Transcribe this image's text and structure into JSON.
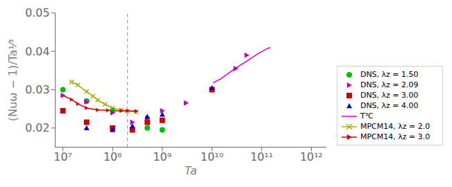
{
  "chart_data": {
    "type": "scatter",
    "log": "x",
    "grid": false,
    "legend": "lower right",
    "x_label": "Ta",
    "y_label": "(Nuω − 1)/Ta¹⁄³",
    "xlim": [
      7000000.0,
      2000000000000.0
    ],
    "xticks": [
      {
        "value": 10000000.0,
        "label": "10⁷"
      },
      {
        "value": 100000000.0,
        "label": "10⁸"
      },
      {
        "value": 1000000000.0,
        "label": "10⁹"
      },
      {
        "value": 10000000000.0,
        "label": "10¹⁰"
      },
      {
        "value": 100000000000.0,
        "label": "10¹¹"
      },
      {
        "value": 1000000000000.0,
        "label": "10¹²"
      }
    ],
    "ylim": [
      0.015,
      0.05
    ],
    "yticks": [
      0.02,
      0.03,
      0.04,
      0.05
    ],
    "vline": {
      "x": 200000000.0,
      "color": "#888888",
      "line_style": "dashed"
    },
    "series": [
      {
        "name": "DNS, λz = 1.50",
        "color": "#00bb00",
        "marker": "circle",
        "line_style": "none",
        "x": [
          10000000.0,
          30000000.0,
          100000000.0,
          500000000.0,
          1000000000.0
        ],
        "values": [
          0.03,
          0.027,
          0.0245,
          0.02,
          0.0195
        ]
      },
      {
        "name": "DNS, λz = 2.09",
        "color": "#bb00bb",
        "marker": "triangle-right",
        "line_style": "none",
        "x": [
          10000000.0,
          30000000.0,
          100000000.0,
          250000000.0,
          500000000.0,
          1000000000.0,
          3000000000.0,
          10000000000.0,
          30000000000.0,
          50000000000.0
        ],
        "values": [
          0.0285,
          0.0268,
          0.024,
          0.0215,
          0.0225,
          0.0245,
          0.0265,
          0.03,
          0.0355,
          0.039
        ]
      },
      {
        "name": "DNS, λz = 3.00",
        "color": "#cc0000",
        "marker": "square",
        "line_style": "none",
        "x": [
          10000000.0,
          30000000.0,
          100000000.0,
          250000000.0,
          500000000.0,
          1000000000.0,
          10000000000.0
        ],
        "values": [
          0.0245,
          0.0215,
          0.02,
          0.0195,
          0.0215,
          0.022,
          0.03
        ]
      },
      {
        "name": "DNS, λz = 4.00",
        "color": "#0000cc",
        "marker": "triangle-up",
        "line_style": "none",
        "x": [
          30000000.0,
          100000000.0,
          250000000.0,
          500000000.0,
          1000000000.0,
          10000000000.0
        ],
        "values": [
          0.02,
          0.0195,
          0.0205,
          0.023,
          0.0235,
          0.0305
        ]
      },
      {
        "name": "T³C",
        "color": "#cc00cc",
        "marker": "none",
        "line_style": "solid",
        "x": [
          10500000000.0,
          15000000000.0,
          20000000000.0,
          30000000000.0,
          50000000000.0,
          80000000000.0,
          120000000000.0,
          150000000000.0
        ],
        "values": [
          0.0318,
          0.0328,
          0.034,
          0.0356,
          0.0374,
          0.0392,
          0.0405,
          0.041
        ]
      },
      {
        "name": "MPCM14, λz = 2.0",
        "color": "#aaaa00",
        "marker": "x",
        "line_style": "solid",
        "x": [
          15000000.0,
          20000000.0,
          30000000.0,
          40000000.0,
          50000000.0,
          70000000.0,
          100000000.0,
          150000000.0,
          200000000.0,
          300000000.0
        ],
        "values": [
          0.032,
          0.0312,
          0.0295,
          0.0283,
          0.0273,
          0.0262,
          0.0252,
          0.0247,
          0.0244,
          0.0242
        ]
      },
      {
        "name": "MPCM14, λz = 3.0",
        "color": "#cc0000",
        "marker": "triangle-right",
        "line_style": "solid",
        "x": [
          10000000.0,
          15000000.0,
          20000000.0,
          30000000.0,
          50000000.0,
          80000000.0,
          100000000.0,
          150000000.0,
          200000000.0,
          300000000.0
        ],
        "values": [
          0.0285,
          0.0274,
          0.0263,
          0.0252,
          0.0247,
          0.0246,
          0.0245,
          0.0245,
          0.0245,
          0.0244
        ]
      }
    ]
  }
}
